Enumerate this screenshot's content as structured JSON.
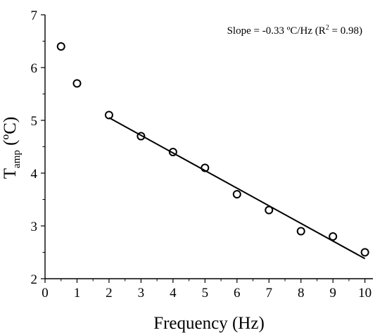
{
  "chart_data": {
    "type": "scatter",
    "xlabel": "Frequency (Hz)",
    "ylabel": {
      "main": "T",
      "sub": "amp",
      "unit": " (ºC)"
    },
    "xlim": [
      0,
      10.25
    ],
    "ylim": [
      2,
      7
    ],
    "x_ticks": [
      0,
      1,
      2,
      3,
      4,
      5,
      6,
      7,
      8,
      9,
      10
    ],
    "y_ticks": [
      2,
      3,
      4,
      5,
      6,
      7
    ],
    "grid": false,
    "series": [
      {
        "marker": "open-circle",
        "x": [
          0.5,
          1,
          2,
          3,
          4,
          5,
          6,
          7,
          8,
          9,
          10
        ],
        "y": [
          6.4,
          5.7,
          5.1,
          4.7,
          4.4,
          4.1,
          3.6,
          3.3,
          2.9,
          2.8,
          2.5
        ]
      }
    ],
    "fit_line": {
      "x": [
        2,
        10
      ],
      "y": [
        5.05,
        2.38
      ],
      "slope": -0.33,
      "r_squared": 0.98
    },
    "annotation": {
      "prefix": "Slope = -0.33 ºC/Hz (R",
      "sup": "2",
      "suffix": " = 0.98)"
    }
  }
}
